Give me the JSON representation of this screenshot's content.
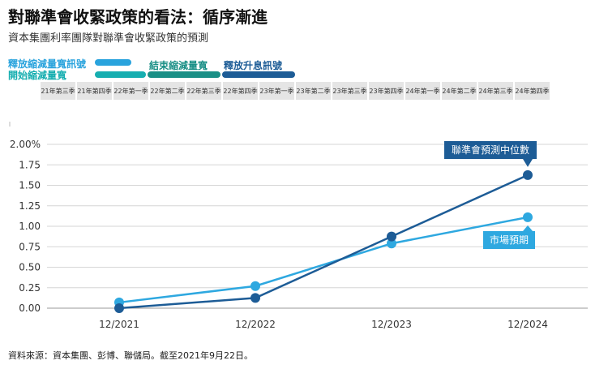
{
  "title": "對聯準會收緊政策的看法：循序漸進",
  "subtitle": "資本集團利率團隊對聯準會收緊政策的預測",
  "phases": [
    {
      "label": "釋放縮減量寬訊號",
      "color": "#29a3dd"
    },
    {
      "label": "開始縮減量寬",
      "color": "#16aeb0"
    },
    {
      "label": "結束縮減量寬",
      "color": "#1a8f86"
    },
    {
      "label": "釋放升息訊號",
      "color": "#1d5c96"
    }
  ],
  "quarters": [
    "21年第三季",
    "21年第四季",
    "22年第一季",
    "22年第二季",
    "22年第三季",
    "22年第四季",
    "23年第一季",
    "23年第二季",
    "23年第三季",
    "23年第四季",
    "24年第一季",
    "24年第二季",
    "24年第三季",
    "24年第四季"
  ],
  "chart_data": {
    "type": "line",
    "categories": [
      "12/2021",
      "12/2022",
      "12/2023",
      "12/2024"
    ],
    "y_ticks": [
      "0.00",
      "0.25",
      "0.50",
      "0.75",
      "1.00",
      "1.25",
      "1.50",
      "1.75",
      "2.00%"
    ],
    "ylim": [
      0,
      2.0
    ],
    "grid": true,
    "series": [
      {
        "name": "聯準會預測中位數",
        "color": "#1d5c96",
        "values": [
          0.0,
          0.125,
          0.875,
          1.625
        ]
      },
      {
        "name": "市場預期",
        "color": "#2ea8e0",
        "values": [
          0.07,
          0.27,
          0.79,
          1.11
        ]
      }
    ]
  },
  "source": "資料來源：資本集團、彭博、聯儲局。截至2021年9月22日。"
}
